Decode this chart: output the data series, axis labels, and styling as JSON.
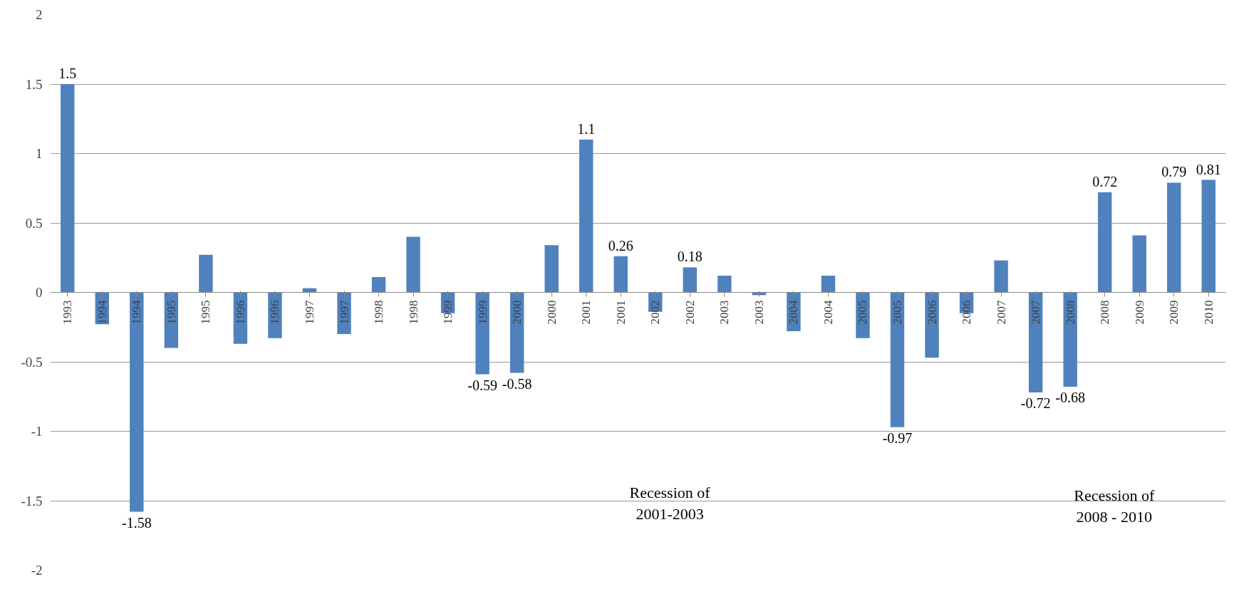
{
  "chart_data": {
    "type": "bar",
    "categories": [
      "1993",
      "1994",
      "1994",
      "1995",
      "1995",
      "1996",
      "1996",
      "1997",
      "1997",
      "1998",
      "1998",
      "1999",
      "1999",
      "2000",
      "2000",
      "2001",
      "2001",
      "2002",
      "2002",
      "2003",
      "2003",
      "2004",
      "2004",
      "2005",
      "2005",
      "2006",
      "2006",
      "2007",
      "2007",
      "2008",
      "2008",
      "2009",
      "2009",
      "2010"
    ],
    "values": [
      1.5,
      -0.23,
      -1.58,
      -0.4,
      0.27,
      -0.37,
      -0.33,
      0.03,
      -0.3,
      0.11,
      0.4,
      -0.15,
      -0.59,
      -0.58,
      0.34,
      1.1,
      0.26,
      -0.14,
      0.18,
      0.12,
      -0.02,
      -0.28,
      0.12,
      -0.33,
      -0.97,
      -0.47,
      -0.15,
      0.23,
      -0.72,
      -0.68,
      0.72,
      0.41,
      0.79,
      0.81
    ],
    "value_labels": [
      "1.5",
      null,
      "-1.58",
      null,
      null,
      null,
      null,
      null,
      null,
      null,
      null,
      null,
      "-0.59",
      "-0.58",
      null,
      "1.1",
      "0.26",
      null,
      "0.18",
      null,
      null,
      null,
      null,
      null,
      "-0.97",
      null,
      null,
      null,
      "-0.72",
      "-0.68",
      "0.72",
      null,
      "0.79",
      "0.81"
    ],
    "color": "#4f81bd",
    "ylim": [
      -2,
      2
    ],
    "yticks": [
      -2,
      -1.5,
      -1,
      -0.5,
      0,
      0.5,
      1,
      1.5,
      2
    ],
    "grid": "y",
    "annotations": [
      "Recession of\n2001-2003",
      "Recession of\n2008 - 2010"
    ]
  }
}
